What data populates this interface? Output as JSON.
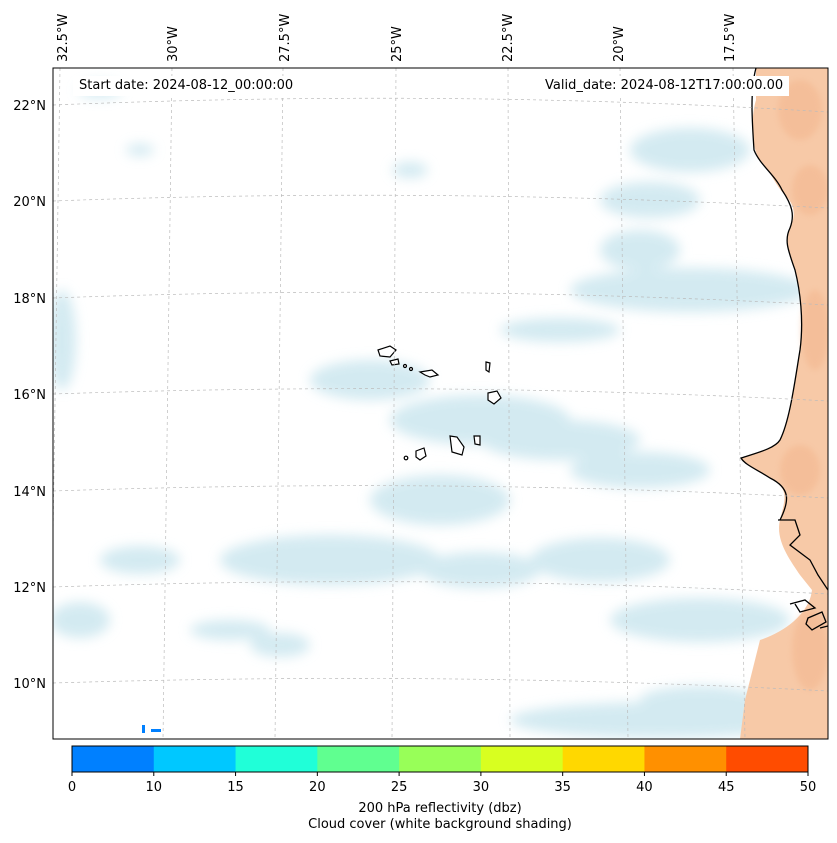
{
  "map": {
    "start_date": "Start date: 2024-08-12_00:00:00",
    "valid_date": "Valid_date: 2024-08-12T17:00:00.00",
    "lon_labels": [
      "32.5°W",
      "30°W",
      "27.5°W",
      "25°W",
      "22.5°W",
      "20°W",
      "17.5°W"
    ],
    "lat_labels": [
      "22°N",
      "20°N",
      "18°N",
      "16°N",
      "14°N",
      "12°N",
      "10°N"
    ],
    "land_color": "#f7c9a7",
    "cloud_color": "#cfe8f0"
  },
  "colorbar": {
    "ticks": [
      "0",
      "10",
      "15",
      "20",
      "25",
      "30",
      "35",
      "40",
      "45",
      "50"
    ],
    "colors": [
      "#0080ff",
      "#00c8ff",
      "#20ffd8",
      "#60ff90",
      "#98ff58",
      "#d8ff20",
      "#ffd800",
      "#ff9000",
      "#ff4c00"
    ],
    "label": "200 hPa reflectivity (dbz)",
    "sublabel": "Cloud cover (white background shading)"
  }
}
